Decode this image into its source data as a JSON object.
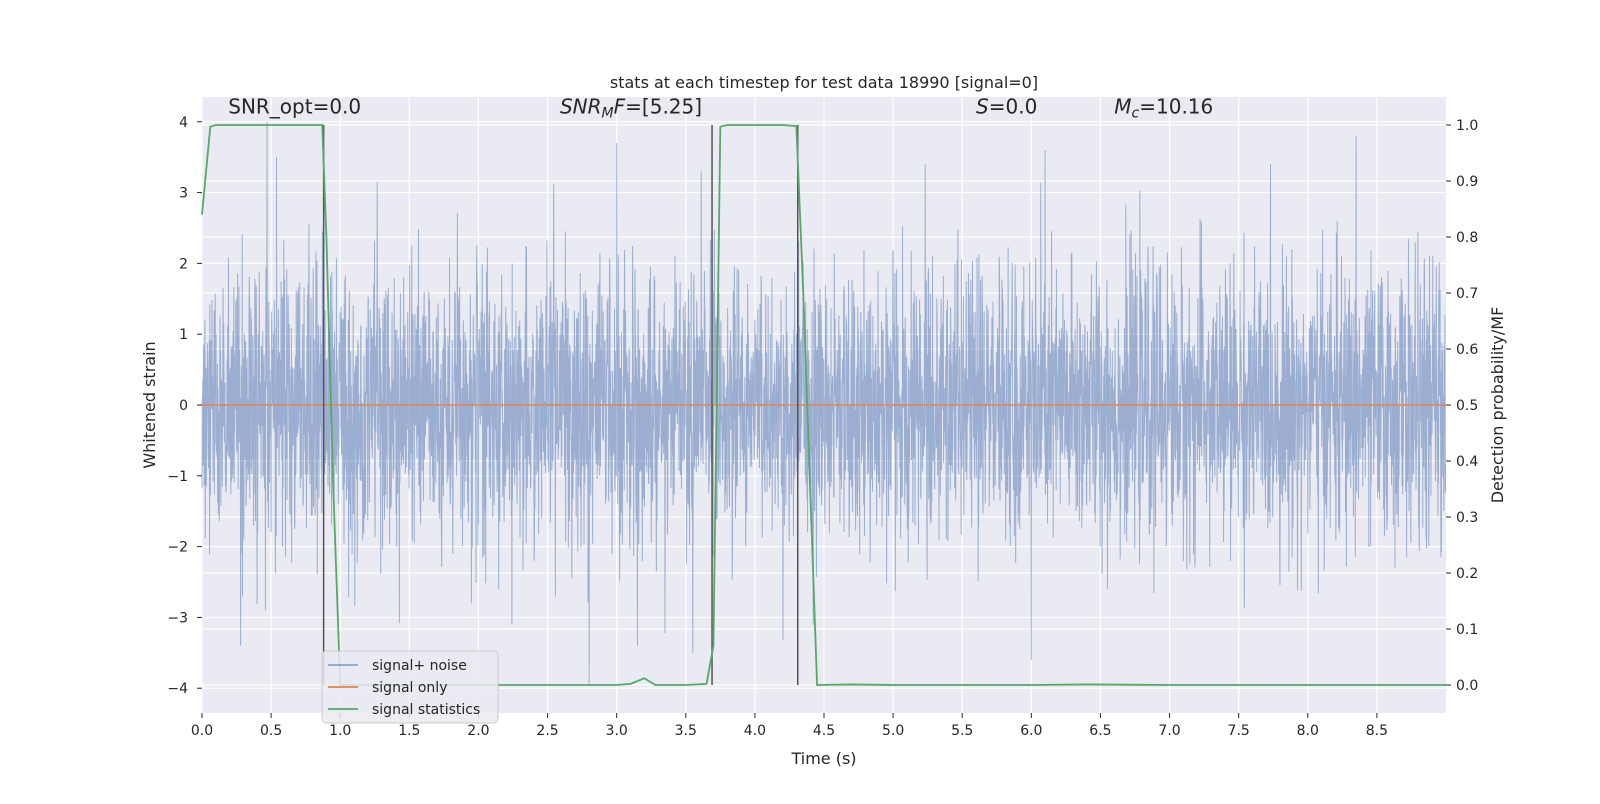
{
  "chart_data": {
    "type": "line",
    "title": "stats at each timestep for test data 18990 [signal=0]",
    "xlabel": "Time (s)",
    "ylabel_left": "Whitened strain",
    "ylabel_right": "Detection probability/MF",
    "xlim": [
      0.0,
      9.0
    ],
    "ylim_left": [
      -4.35,
      4.35
    ],
    "ylim_right": [
      -0.05,
      1.05
    ],
    "xticks": [
      0.0,
      0.5,
      1.0,
      1.5,
      2.0,
      2.5,
      3.0,
      3.5,
      4.0,
      4.5,
      5.0,
      5.5,
      6.0,
      6.5,
      7.0,
      7.5,
      8.0,
      8.5
    ],
    "xtick_labels": [
      "0.0",
      "0.5",
      "1.0",
      "1.5",
      "2.0",
      "2.5",
      "3.0",
      "3.5",
      "4.0",
      "4.5",
      "5.0",
      "5.5",
      "6.0",
      "6.5",
      "7.0",
      "7.5",
      "8.0",
      "8.5"
    ],
    "yticks_left": [
      -4,
      -3,
      -2,
      -1,
      0,
      1,
      2,
      3,
      4
    ],
    "ytick_labels_left": [
      "−4",
      "−3",
      "−2",
      "−1",
      "0",
      "1",
      "2",
      "3",
      "4"
    ],
    "yticks_right": [
      0.0,
      0.1,
      0.2,
      0.3,
      0.4,
      0.5,
      0.6,
      0.7,
      0.8,
      0.9,
      1.0
    ],
    "ytick_labels_right": [
      "0.0",
      "0.1",
      "0.2",
      "0.3",
      "0.4",
      "0.5",
      "0.6",
      "0.7",
      "0.8",
      "0.9",
      "1.0"
    ],
    "grid": true,
    "legend_position": "lower-left",
    "series": [
      {
        "name": "signal+ noise",
        "color": "#4c72b0",
        "axis": "left",
        "kind": "noise",
        "sample_rate": 512,
        "amplitude_std": 1.0,
        "peak_values": [
          [
            0.47,
            4.0
          ],
          [
            0.54,
            3.5
          ],
          [
            0.28,
            -3.4
          ],
          [
            2.8,
            -3.95
          ],
          [
            3.0,
            3.7
          ],
          [
            6.0,
            -3.6
          ],
          [
            6.1,
            3.6
          ],
          [
            8.35,
            3.8
          ],
          [
            3.55,
            -3.5
          ]
        ]
      },
      {
        "name": "signal only",
        "color": "#dd8452",
        "axis": "left",
        "kind": "line",
        "x": [
          0.0,
          9.0
        ],
        "y": [
          0.0,
          0.0
        ]
      },
      {
        "name": "signal statistics",
        "color": "#55a868",
        "axis": "right",
        "kind": "line",
        "x": [
          0.0,
          0.06,
          0.1,
          0.2,
          0.5,
          0.8,
          0.87,
          0.9,
          0.95,
          1.0,
          1.1,
          2.0,
          3.0,
          3.1,
          3.2,
          3.28,
          3.5,
          3.65,
          3.7,
          3.75,
          3.8,
          4.0,
          4.2,
          4.3,
          4.35,
          4.45,
          4.7,
          5.0,
          6.0,
          6.4,
          7.0,
          8.0,
          9.0
        ],
        "y": [
          0.84,
          0.997,
          1.0,
          1.0,
          1.0,
          1.0,
          1.0,
          0.8,
          0.35,
          0.0,
          0.0,
          0.0,
          0.0,
          0.002,
          0.012,
          0.0,
          0.0,
          0.002,
          0.07,
          0.997,
          1.0,
          1.0,
          1.0,
          0.998,
          0.7,
          0.0,
          0.001,
          0.0,
          0.0,
          0.001,
          0.0,
          0.0,
          0.0
        ]
      }
    ],
    "vlines": [
      {
        "x": 0.88,
        "color": "#555555"
      },
      {
        "x": 3.69,
        "color": "#555555"
      },
      {
        "x": 4.31,
        "color": "#555555"
      }
    ],
    "annotations": [
      {
        "text": "SNR_opt=0.0",
        "x": 0.19,
        "y": 4.12,
        "style": "normal"
      },
      {
        "text_main": "SNR",
        "text_sub": "M",
        "text_tail": "F=[5.25]",
        "x": 2.59,
        "y": 4.12,
        "style": "italic-sub"
      },
      {
        "text_main": "S",
        "text_sub": "",
        "text_tail": "=0.0",
        "x": 5.6,
        "y": 4.12,
        "style": "italic-sub"
      },
      {
        "text_main": "M",
        "text_sub": "c",
        "text_tail": "=10.16",
        "x": 6.6,
        "y": 4.12,
        "style": "italic-sub"
      }
    ],
    "background": "#eaeaf2",
    "grid_color": "#ffffff"
  }
}
